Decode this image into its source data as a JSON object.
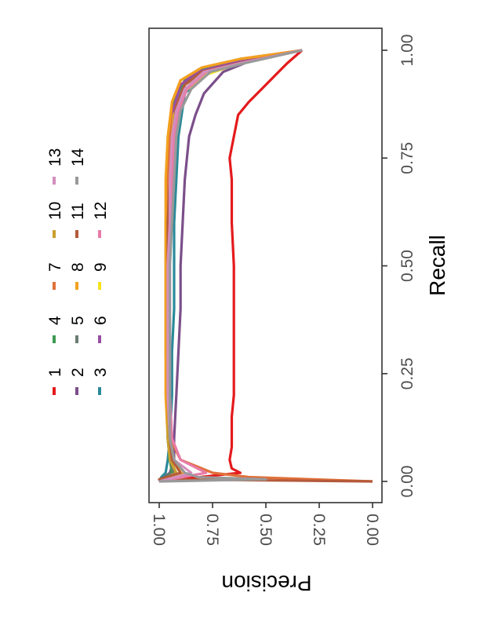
{
  "chart_data": {
    "type": "line",
    "orientation": "rotated-90-clockwise",
    "xlabel": "Recall",
    "ylabel": "Precision",
    "xlim": [
      0,
      1
    ],
    "ylim": [
      0,
      1
    ],
    "x_ticks": [
      "0.00",
      "0.25",
      "0.50",
      "0.75",
      "1.00"
    ],
    "y_ticks": [
      "0.00",
      "0.25",
      "0.50",
      "0.75",
      "1.00"
    ],
    "grid": false,
    "legend_position": "top",
    "series": [
      {
        "name": "1",
        "color": "#e41a1c",
        "x": [
          0.0,
          0.02,
          0.03,
          0.05,
          0.08,
          0.1,
          0.15,
          0.2,
          0.3,
          0.4,
          0.5,
          0.6,
          0.7,
          0.75,
          0.8,
          0.85,
          0.88,
          0.91,
          0.94,
          0.97,
          1.0
        ],
        "y": [
          1.0,
          0.62,
          0.66,
          0.67,
          0.66,
          0.66,
          0.66,
          0.65,
          0.65,
          0.65,
          0.65,
          0.66,
          0.66,
          0.67,
          0.65,
          0.63,
          0.58,
          0.52,
          0.46,
          0.4,
          0.33
        ]
      },
      {
        "name": "2",
        "color": "#7b4f8a",
        "x": [
          0.0,
          0.02,
          0.05,
          0.1,
          0.2,
          0.3,
          0.4,
          0.5,
          0.6,
          0.7,
          0.8,
          0.85,
          0.9,
          0.95,
          0.98,
          1.0
        ],
        "y": [
          1.0,
          0.95,
          0.93,
          0.93,
          0.92,
          0.91,
          0.9,
          0.9,
          0.89,
          0.88,
          0.86,
          0.83,
          0.79,
          0.7,
          0.55,
          0.33
        ]
      },
      {
        "name": "3",
        "color": "#2b8a99",
        "x": [
          0.0,
          0.01,
          0.02,
          0.05,
          0.1,
          0.2,
          0.3,
          0.4,
          0.5,
          0.6,
          0.7,
          0.8,
          0.9,
          0.95,
          0.98,
          1.0
        ],
        "y": [
          1.0,
          0.99,
          0.97,
          0.96,
          0.95,
          0.94,
          0.94,
          0.93,
          0.93,
          0.93,
          0.92,
          0.91,
          0.88,
          0.78,
          0.6,
          0.33
        ]
      },
      {
        "name": "4",
        "color": "#3d9a50",
        "x": [
          0.0,
          0.02,
          0.05,
          0.1,
          0.2,
          0.3,
          0.4,
          0.5,
          0.6,
          0.7,
          0.8,
          0.88,
          0.93,
          0.96,
          0.98,
          1.0
        ],
        "y": [
          1.0,
          0.94,
          0.95,
          0.96,
          0.96,
          0.96,
          0.96,
          0.96,
          0.96,
          0.95,
          0.94,
          0.93,
          0.88,
          0.78,
          0.6,
          0.33
        ]
      },
      {
        "name": "5",
        "color": "#6b7d72",
        "x": [
          0.0,
          0.02,
          0.05,
          0.1,
          0.2,
          0.3,
          0.4,
          0.5,
          0.6,
          0.7,
          0.8,
          0.88,
          0.93,
          0.96,
          0.98,
          1.0
        ],
        "y": [
          1.0,
          0.93,
          0.95,
          0.96,
          0.96,
          0.96,
          0.96,
          0.96,
          0.95,
          0.95,
          0.94,
          0.92,
          0.87,
          0.76,
          0.58,
          0.33
        ]
      },
      {
        "name": "6",
        "color": "#984ea3",
        "x": [
          0.0,
          0.02,
          0.05,
          0.1,
          0.2,
          0.3,
          0.4,
          0.5,
          0.6,
          0.7,
          0.8,
          0.87,
          0.92,
          0.95,
          0.97,
          1.0
        ],
        "y": [
          1.0,
          0.9,
          0.94,
          0.95,
          0.96,
          0.96,
          0.96,
          0.96,
          0.96,
          0.96,
          0.95,
          0.93,
          0.9,
          0.82,
          0.66,
          0.33
        ]
      },
      {
        "name": "7",
        "color": "#e0703a",
        "x": [
          0.0,
          0.01,
          0.02,
          0.05,
          0.1,
          0.2,
          0.3,
          0.4,
          0.5,
          0.6,
          0.7,
          0.8,
          0.88,
          0.93,
          0.96,
          0.98,
          1.0
        ],
        "y": [
          0.0,
          0.58,
          0.75,
          0.9,
          0.95,
          0.96,
          0.97,
          0.97,
          0.97,
          0.97,
          0.96,
          0.95,
          0.94,
          0.9,
          0.8,
          0.62,
          0.33
        ]
      },
      {
        "name": "8",
        "color": "#f2a11e",
        "x": [
          0.0,
          0.02,
          0.05,
          0.1,
          0.2,
          0.3,
          0.4,
          0.5,
          0.6,
          0.7,
          0.8,
          0.88,
          0.93,
          0.96,
          0.98,
          1.0
        ],
        "y": [
          1.0,
          0.88,
          0.94,
          0.96,
          0.97,
          0.97,
          0.97,
          0.97,
          0.97,
          0.97,
          0.96,
          0.94,
          0.9,
          0.8,
          0.62,
          0.33
        ]
      },
      {
        "name": "9",
        "color": "#f5e21b",
        "x": [
          0.0,
          0.02,
          0.05,
          0.1,
          0.2,
          0.3,
          0.4,
          0.5,
          0.6,
          0.7,
          0.8,
          0.85,
          0.9,
          0.94,
          0.97,
          1.0
        ],
        "y": [
          1.0,
          0.9,
          0.94,
          0.95,
          0.96,
          0.96,
          0.96,
          0.96,
          0.95,
          0.95,
          0.94,
          0.93,
          0.89,
          0.8,
          0.62,
          0.33
        ]
      },
      {
        "name": "10",
        "color": "#c9a02c",
        "x": [
          0.0,
          0.02,
          0.05,
          0.1,
          0.2,
          0.3,
          0.4,
          0.5,
          0.6,
          0.7,
          0.8,
          0.87,
          0.92,
          0.95,
          0.97,
          1.0
        ],
        "y": [
          1.0,
          0.92,
          0.95,
          0.96,
          0.96,
          0.96,
          0.96,
          0.96,
          0.96,
          0.95,
          0.94,
          0.92,
          0.88,
          0.79,
          0.62,
          0.33
        ]
      },
      {
        "name": "11",
        "color": "#b45a3b",
        "x": [
          0.0,
          0.005,
          0.02,
          0.05,
          0.1,
          0.2,
          0.3,
          0.4,
          0.5,
          0.6,
          0.7,
          0.8,
          0.87,
          0.92,
          0.95,
          0.97,
          1.0
        ],
        "y": [
          0.0,
          1.0,
          0.9,
          0.94,
          0.95,
          0.96,
          0.96,
          0.96,
          0.96,
          0.96,
          0.95,
          0.94,
          0.92,
          0.88,
          0.8,
          0.63,
          0.33
        ]
      },
      {
        "name": "12",
        "color": "#e87ba8",
        "x": [
          0.0,
          0.02,
          0.05,
          0.1,
          0.2,
          0.3,
          0.4,
          0.5,
          0.6,
          0.7,
          0.8,
          0.86,
          0.91,
          0.95,
          0.97,
          1.0
        ],
        "y": [
          1.0,
          0.78,
          0.9,
          0.94,
          0.95,
          0.95,
          0.95,
          0.95,
          0.95,
          0.94,
          0.93,
          0.91,
          0.87,
          0.78,
          0.62,
          0.33
        ]
      },
      {
        "name": "13",
        "color": "#d48fbe",
        "x": [
          0.0,
          0.02,
          0.05,
          0.1,
          0.2,
          0.3,
          0.4,
          0.5,
          0.6,
          0.7,
          0.8,
          0.86,
          0.91,
          0.95,
          0.97,
          1.0
        ],
        "y": [
          1.0,
          0.85,
          0.93,
          0.95,
          0.96,
          0.96,
          0.96,
          0.96,
          0.95,
          0.95,
          0.94,
          0.92,
          0.88,
          0.79,
          0.62,
          0.33
        ]
      },
      {
        "name": "14",
        "color": "#999999",
        "x": [
          0.0,
          0.005,
          0.01,
          0.02,
          0.05,
          0.1,
          0.2,
          0.3,
          0.4,
          0.5,
          0.6,
          0.7,
          0.8,
          0.86,
          0.91,
          0.95,
          0.97,
          1.0
        ],
        "y": [
          1.0,
          0.5,
          0.82,
          0.88,
          0.93,
          0.95,
          0.95,
          0.95,
          0.95,
          0.95,
          0.94,
          0.93,
          0.92,
          0.9,
          0.85,
          0.76,
          0.6,
          0.33
        ]
      }
    ]
  }
}
